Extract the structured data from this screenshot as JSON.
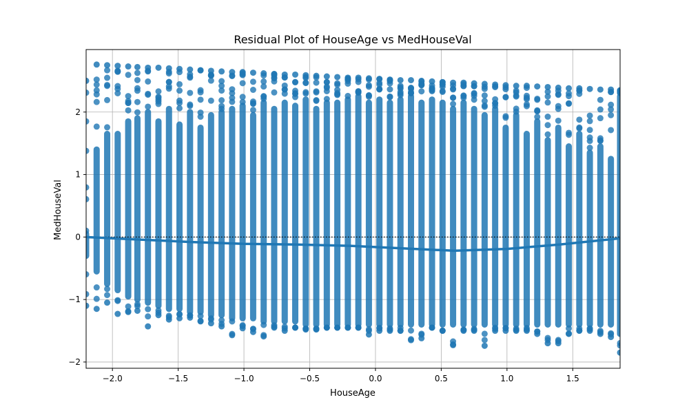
{
  "chart_data": {
    "type": "scatter",
    "title": "Residual Plot of HouseAge vs MedHouseVal",
    "xlabel": "HouseAge",
    "ylabel": "MedHouseVal",
    "xlim": [
      -2.2,
      1.86
    ],
    "ylim": [
      -2.1,
      3.0
    ],
    "xticks": [
      -2.0,
      -1.5,
      -1.0,
      -0.5,
      0.0,
      0.5,
      1.0,
      1.5
    ],
    "xtick_labels": [
      "−2.0",
      "−1.5",
      "−1.0",
      "−0.5",
      "0.0",
      "0.5",
      "1.0",
      "1.5"
    ],
    "yticks": [
      -2,
      -1,
      0,
      1,
      2
    ],
    "ytick_labels": [
      "−2",
      "−1",
      "0",
      "1",
      "2"
    ],
    "grid": true,
    "reference_line": {
      "y": 0,
      "style": "dotted",
      "color": "#000000"
    },
    "point_color": "#1f77b4",
    "house_age_levels": [
      -2.2,
      -2.12,
      -2.04,
      -1.96,
      -1.88,
      -1.81,
      -1.73,
      -1.65,
      -1.57,
      -1.49,
      -1.41,
      -1.33,
      -1.25,
      -1.17,
      -1.09,
      -1.01,
      -0.93,
      -0.85,
      -0.77,
      -0.69,
      -0.61,
      -0.53,
      -0.45,
      -0.37,
      -0.29,
      -0.21,
      -0.13,
      -0.05,
      0.03,
      0.11,
      0.19,
      0.27,
      0.35,
      0.43,
      0.51,
      0.59,
      0.67,
      0.75,
      0.83,
      0.91,
      0.99,
      1.07,
      1.15,
      1.23,
      1.31,
      1.39,
      1.47,
      1.55,
      1.63,
      1.71,
      1.79,
      1.86
    ],
    "residual_columns": {
      "upper_cap": [
        2.5,
        2.76,
        2.75,
        2.74,
        2.73,
        2.72,
        2.71,
        2.71,
        2.7,
        2.69,
        2.68,
        2.67,
        2.66,
        2.65,
        2.64,
        2.64,
        2.63,
        2.62,
        2.61,
        2.6,
        2.6,
        2.59,
        2.58,
        2.57,
        2.56,
        2.55,
        2.55,
        2.54,
        2.53,
        2.52,
        2.51,
        2.51,
        2.5,
        2.49,
        2.48,
        2.47,
        2.47,
        2.46,
        2.45,
        2.44,
        2.43,
        2.42,
        2.42,
        2.41,
        2.4,
        2.39,
        2.38,
        2.38,
        2.37,
        2.36,
        2.36,
        2.35
      ],
      "dense_top": [
        0.1,
        1.45,
        1.7,
        1.7,
        1.9,
        1.95,
        2.05,
        1.9,
        2.1,
        1.85,
        2.05,
        1.8,
        2.0,
        2.05,
        2.1,
        2.15,
        2.0,
        2.2,
        2.1,
        2.2,
        2.15,
        2.25,
        2.1,
        2.2,
        2.2,
        2.25,
        2.3,
        2.2,
        2.25,
        2.2,
        2.25,
        2.3,
        2.2,
        2.25,
        2.2,
        2.1,
        2.2,
        2.1,
        2.0,
        2.1,
        1.8,
        2.0,
        1.7,
        1.9,
        1.6,
        1.8,
        1.5,
        1.7,
        1.4,
        1.5,
        1.3,
        2.3
      ],
      "dense_bottom": [
        -0.35,
        -0.6,
        -0.8,
        -0.9,
        -1.0,
        -1.05,
        -1.1,
        -1.15,
        -1.2,
        -1.2,
        -1.25,
        -1.25,
        -1.3,
        -1.3,
        -1.35,
        -1.35,
        -1.35,
        -1.4,
        -1.4,
        -1.4,
        -1.4,
        -1.45,
        -1.45,
        -1.45,
        -1.45,
        -1.45,
        -1.45,
        -1.45,
        -1.45,
        -1.45,
        -1.45,
        -1.45,
        -1.45,
        -1.45,
        -1.45,
        -1.45,
        -1.45,
        -1.45,
        -1.45,
        -1.45,
        -1.45,
        -1.45,
        -1.45,
        -1.45,
        -1.45,
        -1.45,
        -1.45,
        -1.45,
        -1.45,
        -1.45,
        -1.45,
        -1.6
      ],
      "lowest": [
        -1.1,
        -1.15,
        -1.05,
        -1.23,
        -1.2,
        -1.18,
        -1.43,
        -1.25,
        -1.32,
        -1.3,
        -1.29,
        -1.35,
        -1.38,
        -1.43,
        -1.57,
        -1.46,
        -1.52,
        -1.59,
        -1.45,
        -1.5,
        -1.45,
        -1.48,
        -1.48,
        -1.45,
        -1.45,
        -1.45,
        -1.45,
        -1.56,
        -1.5,
        -1.5,
        -1.5,
        -1.65,
        -1.62,
        -1.45,
        -1.5,
        -1.73,
        -1.5,
        -1.5,
        -1.74,
        -1.5,
        -1.5,
        -1.5,
        -1.5,
        -1.55,
        -1.7,
        -1.7,
        -1.55,
        -1.5,
        -1.5,
        -1.55,
        -1.6,
        -1.85
      ]
    },
    "trend_line": {
      "x": [
        -2.2,
        -1.8,
        -1.4,
        -1.0,
        -0.6,
        -0.2,
        0.2,
        0.6,
        1.0,
        1.4,
        1.86
      ],
      "y": [
        0.0,
        -0.04,
        -0.08,
        -0.11,
        -0.12,
        -0.14,
        -0.18,
        -0.22,
        -0.19,
        -0.12,
        -0.02
      ]
    }
  }
}
